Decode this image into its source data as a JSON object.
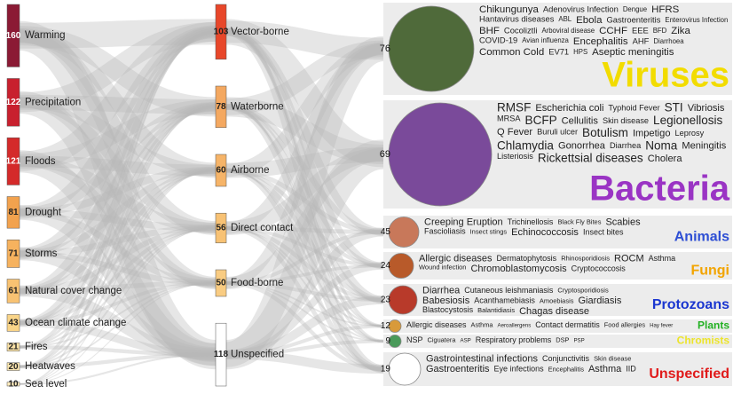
{
  "hazards": [
    {
      "label": "Warming",
      "value": 160,
      "color": "#8b1a34"
    },
    {
      "label": "Precipitation",
      "value": 122,
      "color": "#c8202e"
    },
    {
      "label": "Floods",
      "value": 121,
      "color": "#d42a2a"
    },
    {
      "label": "Drought",
      "value": 81,
      "color": "#f2a24e"
    },
    {
      "label": "Storms",
      "value": 71,
      "color": "#f6b25e"
    },
    {
      "label": "Natural cover change",
      "value": 61,
      "color": "#f8c272"
    },
    {
      "label": "Ocean climate change",
      "value": 43,
      "color": "#f9d488"
    },
    {
      "label": "Fires",
      "value": 21,
      "color": "#fbe2a6"
    },
    {
      "label": "Heatwaves",
      "value": 20,
      "color": "#fbe6b0"
    },
    {
      "label": "Sea level",
      "value": 10,
      "color": "#fceabc"
    }
  ],
  "pathways": [
    {
      "label": "Vector-borne",
      "value": 103,
      "color": "#e8472a"
    },
    {
      "label": "Waterborne",
      "value": 78,
      "color": "#f4a860"
    },
    {
      "label": "Airborne",
      "value": 60,
      "color": "#f6b468"
    },
    {
      "label": "Direct contact",
      "value": 56,
      "color": "#f8c274"
    },
    {
      "label": "Food-borne",
      "value": 50,
      "color": "#f9cc82"
    },
    {
      "label": "Unspecified",
      "value": 118,
      "color": "#ffffff"
    }
  ],
  "pathogen_groups": [
    {
      "name": "Viruses",
      "value": 76,
      "color": "#f2dc00",
      "circle_color": "#4f6a3a",
      "words": [
        "Chikungunya",
        "Adenovirus Infection",
        "Dengue",
        "HFRS",
        "Hantavirus diseases",
        "ABL",
        "Ebola",
        "Gastroenteritis",
        "Enterovirus Infection",
        "BHF",
        "Cocoliztli",
        "Arboviral disease",
        "CCHF",
        "EEE",
        "BFD",
        "Zika",
        "COVID-19",
        "Avian influenza",
        "Encephalitis",
        "AHF",
        "Diarrhoea",
        "Common Cold",
        "EV71",
        "HPS",
        "Aseptic meningitis"
      ]
    },
    {
      "name": "Bacteria",
      "value": 69,
      "color": "#9a34c4",
      "circle_color": "#7a4a9a",
      "words": [
        "RMSF",
        "Escherichia coli",
        "Typhoid Fever",
        "STI",
        "Vibriosis",
        "MRSA",
        "BCFP",
        "Cellulitis",
        "Skin disease",
        "Legionellosis",
        "Q Fever",
        "Buruli ulcer",
        "Botulism",
        "Impetigo",
        "Leprosy",
        "Chlamydia",
        "Gonorrhea",
        "Diarrhea",
        "Noma",
        "Meningitis",
        "Listeriosis",
        "Rickettsial diseases",
        "Cholera"
      ]
    },
    {
      "name": "Animals",
      "value": 45,
      "color": "#2e4fd4",
      "circle_color": "#c8785a",
      "words": [
        "Creeping Eruption",
        "Trichinellosis",
        "Black Fly Bites",
        "Scabies",
        "Fascioliasis",
        "Insect stings",
        "Echinococcosis",
        "Insect bites"
      ]
    },
    {
      "name": "Fungi",
      "value": 24,
      "color": "#f2a400",
      "circle_color": "#b85a2a",
      "words": [
        "Allergic diseases",
        "Dermatophytosis",
        "Rhinosporidiosis",
        "ROCM",
        "Asthma",
        "Wound infection",
        "Chromoblastomycosis",
        "Cryptococcosis"
      ]
    },
    {
      "name": "Protozoans",
      "value": 23,
      "color": "#1a36d0",
      "circle_color": "#b83a2a",
      "words": [
        "Diarrhea",
        "Cutaneous leishmaniasis",
        "Cryptosporidiosis",
        "Babesiosis",
        "Acanthamebiasis",
        "Amoebiasis",
        "Giardiasis",
        "Blastocystosis",
        "Balantidiasis",
        "Chagas disease"
      ]
    },
    {
      "name": "Plants",
      "value": 12,
      "color": "#22b022",
      "circle_color": "#d89a3a",
      "words": [
        "Allergic diseases",
        "Asthma",
        "Aeroallergens",
        "Contact dermatitis",
        "Food allergies",
        "Hay fever"
      ]
    },
    {
      "name": "Chromists",
      "value": 9,
      "color": "#ece42a",
      "circle_color": "#4a9a5a",
      "words": [
        "NSP",
        "Ciguatera",
        "ASP",
        "Respiratory problems",
        "DSP",
        "PSP"
      ]
    },
    {
      "name": "Unspecified",
      "value": 19,
      "color": "#e01a1a",
      "circle_color": "#ffffff",
      "words": [
        "Gastrointestinal infections",
        "Conjunctivitis",
        "Skin disease",
        "Gastroenteritis",
        "Eye infections",
        "Encephalitis",
        "Asthma",
        "IID"
      ]
    }
  ]
}
